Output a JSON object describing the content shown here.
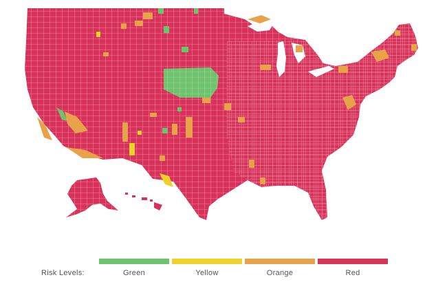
{
  "legend": {
    "title": "Risk Levels:",
    "items": [
      {
        "key": "green",
        "label": "Green",
        "color": "#6cc56c"
      },
      {
        "key": "yellow",
        "label": "Yellow",
        "color": "#f0d12a"
      },
      {
        "key": "orange",
        "label": "Orange",
        "color": "#e8a24a"
      },
      {
        "key": "red",
        "label": "Red",
        "color": "#d8325a"
      }
    ]
  },
  "map": {
    "type": "choropleth",
    "subject": "United States counties by risk level",
    "county_border_color": "#f6c6cf",
    "regions": [
      {
        "name": "Contiguous United States",
        "risk": "red"
      },
      {
        "name": "Alaska",
        "risk": "red"
      },
      {
        "name": "Hawaii",
        "risk": "red"
      },
      {
        "name": "Nebraska (central cluster)",
        "risk": "green"
      },
      {
        "name": "South Dakota (scattered)",
        "risk": "green"
      },
      {
        "name": "California central (scattered)",
        "risk": "green"
      },
      {
        "name": "Nevada / Arizona (scattered)",
        "risk": "yellow"
      },
      {
        "name": "Western Texas (scattered)",
        "risk": "orange"
      },
      {
        "name": "Southern California coast",
        "risk": "orange"
      },
      {
        "name": "Northern Michigan / Wisconsin (scattered)",
        "risk": "orange"
      },
      {
        "name": "Maine / New England (scattered)",
        "risk": "orange"
      },
      {
        "name": "Virginia / Maryland (scattered)",
        "risk": "orange"
      }
    ]
  }
}
